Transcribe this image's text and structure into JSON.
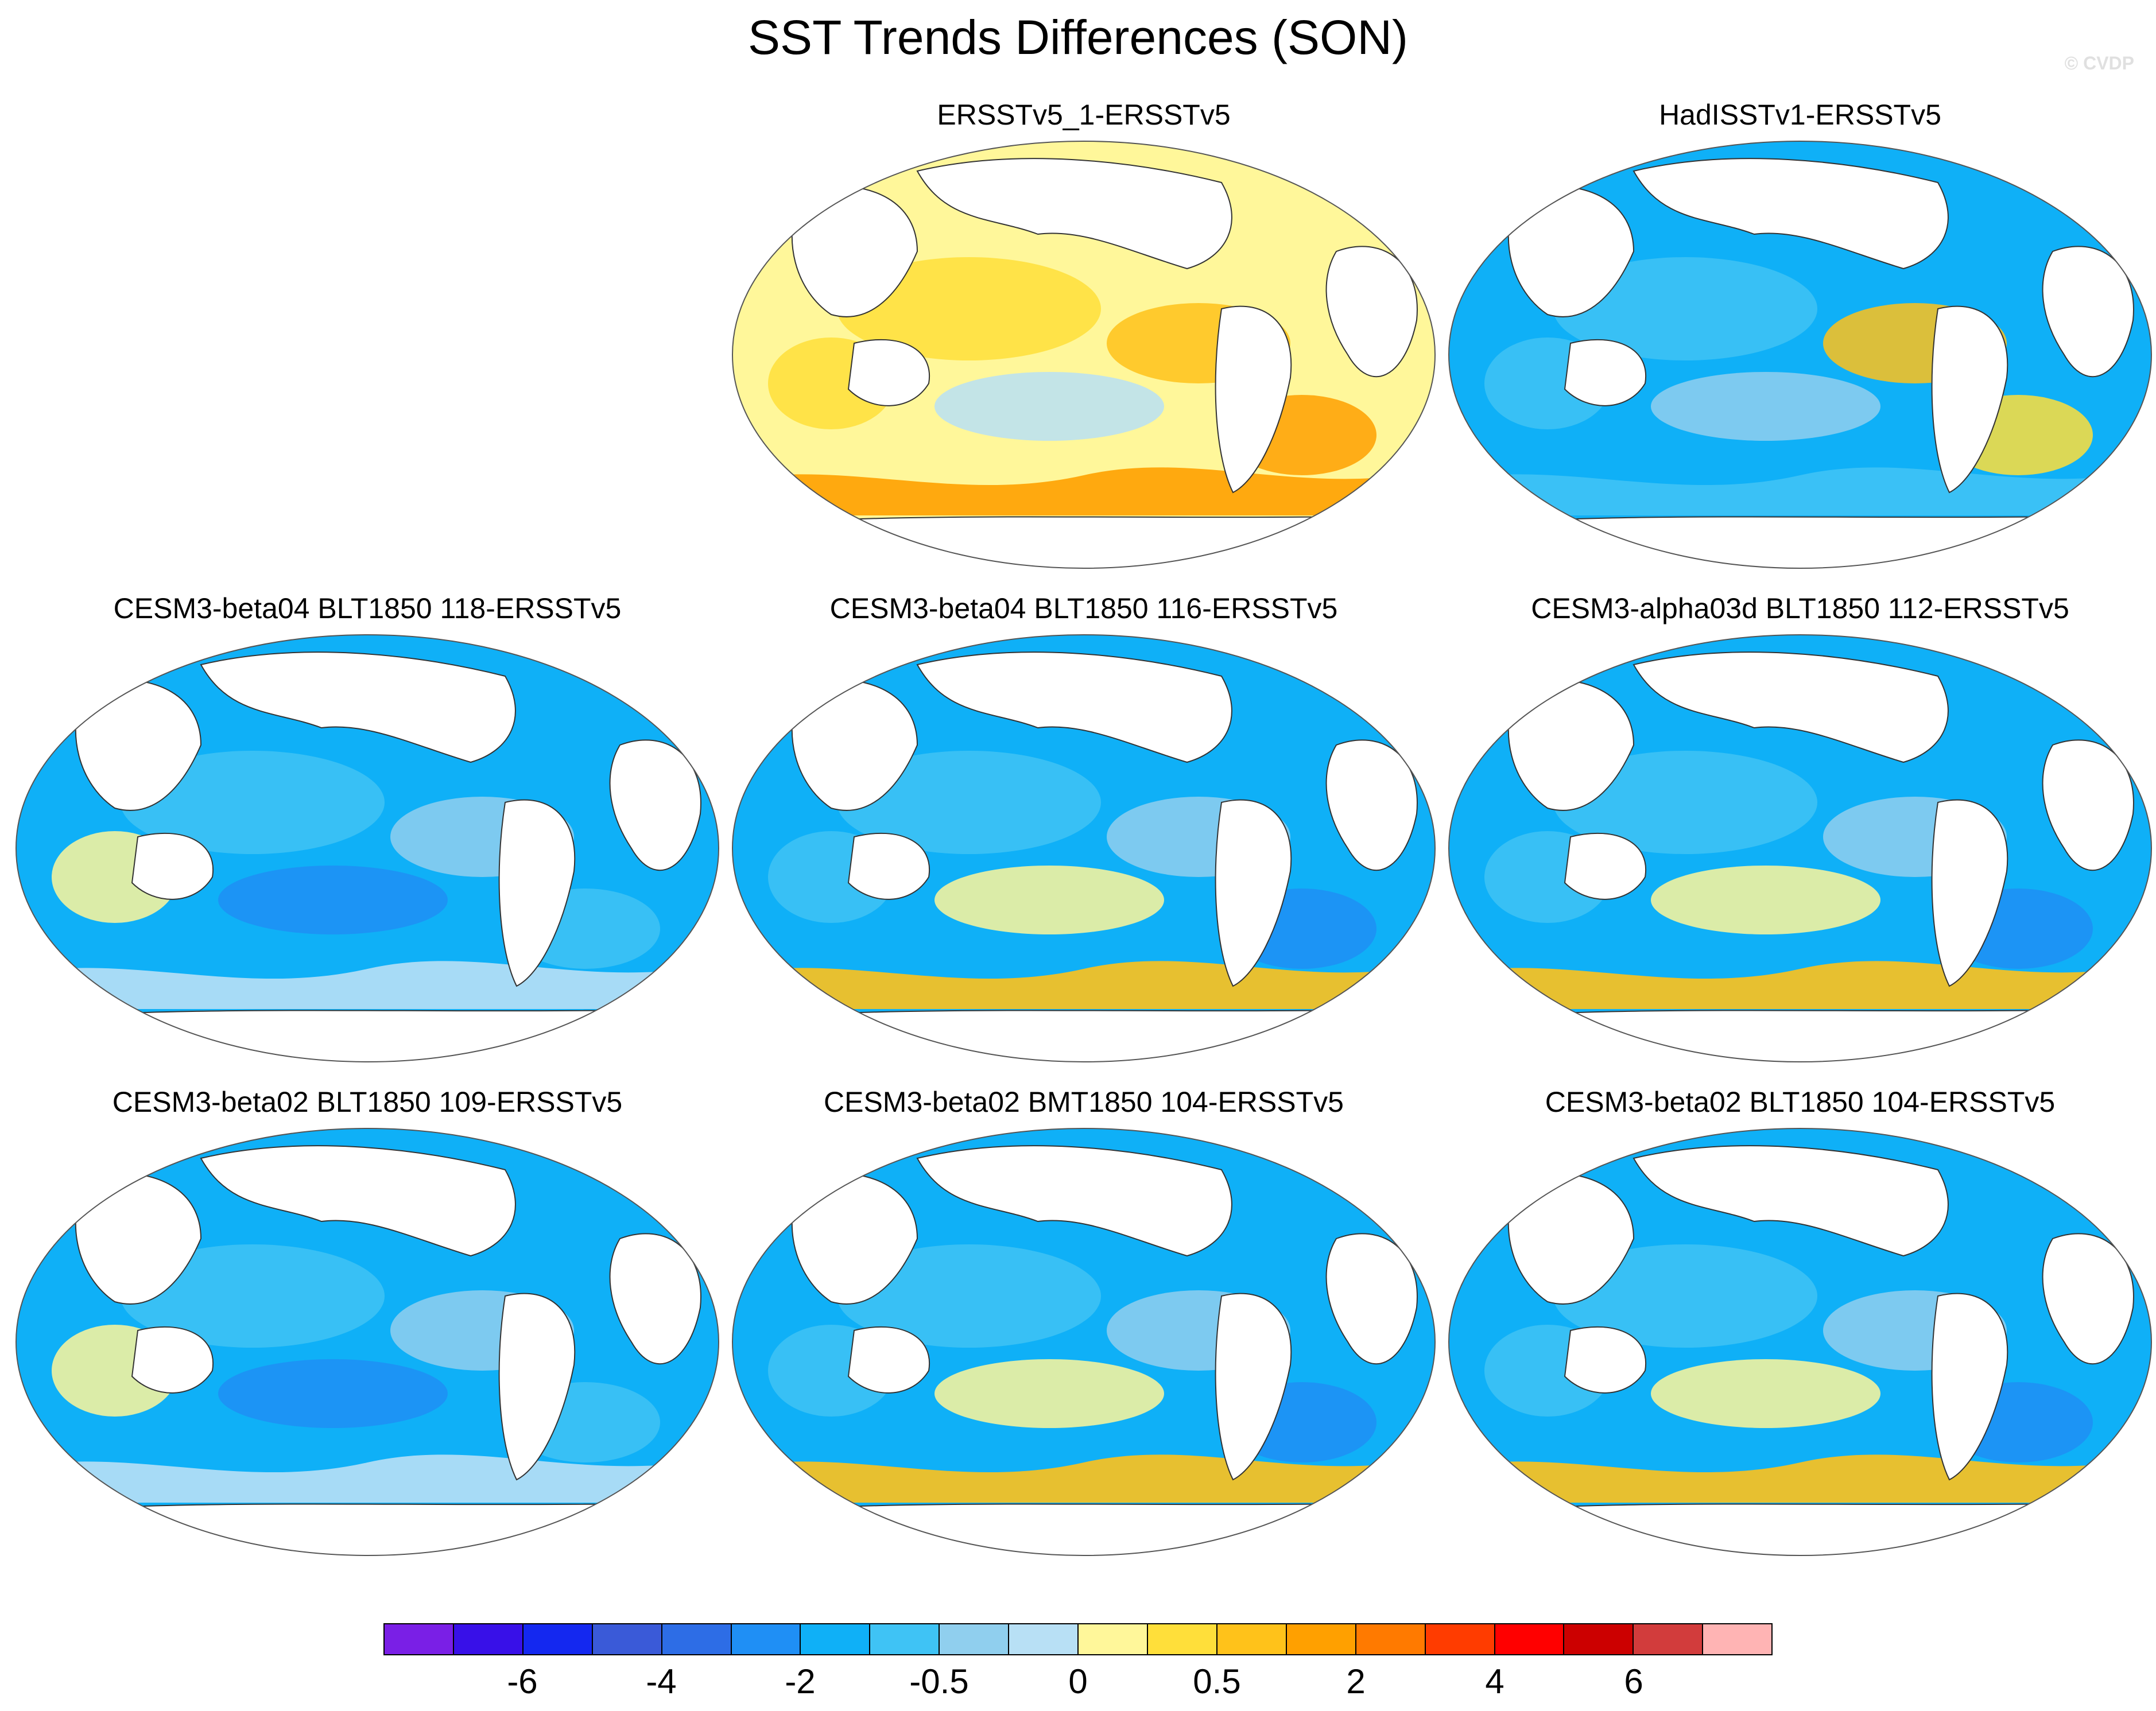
{
  "title": "SST Trends Differences (SON)",
  "watermark": "© CVDP",
  "panels": [
    {
      "title": "ERSSTv5_1-ERSSTv5",
      "col": 1,
      "row": 0,
      "pattern": "warm"
    },
    {
      "title": "HadISSTv1-ERSSTv5",
      "col": 2,
      "row": 0,
      "pattern": "mixed"
    },
    {
      "title": "CESM3-beta04 BLT1850 118-ERSSTv5",
      "col": 0,
      "row": 1,
      "pattern": "cool"
    },
    {
      "title": "CESM3-beta04 BLT1850 116-ERSSTv5",
      "col": 1,
      "row": 1,
      "pattern": "cool-southwarm"
    },
    {
      "title": "CESM3-alpha03d BLT1850 112-ERSSTv5",
      "col": 2,
      "row": 1,
      "pattern": "cool-southwarm"
    },
    {
      "title": "CESM3-beta02 BLT1850 109-ERSSTv5",
      "col": 0,
      "row": 2,
      "pattern": "cool"
    },
    {
      "title": "CESM3-beta02 BMT1850 104-ERSSTv5",
      "col": 1,
      "row": 2,
      "pattern": "cool-southwarm"
    },
    {
      "title": "CESM3-beta02 BLT1850 104-ERSSTv5",
      "col": 2,
      "row": 2,
      "pattern": "cool-southwarm"
    }
  ],
  "colorbar": {
    "colors": [
      "#7a1fe6",
      "#3810e8",
      "#1428f0",
      "#3a5ad8",
      "#2d6de6",
      "#1f8ff5",
      "#0fb0f7",
      "#3fc3f5",
      "#90cfee",
      "#b8e0f5",
      "#fff79a",
      "#ffdf3a",
      "#ffc21a",
      "#ffa000",
      "#ff7a00",
      "#ff3c00",
      "#ff0000",
      "#cc0000",
      "#d23c3c",
      "#ffb4b4"
    ],
    "labels": [
      "-6",
      "-4",
      "-2",
      "-0.5",
      "0",
      "0.5",
      "2",
      "4",
      "6"
    ]
  }
}
